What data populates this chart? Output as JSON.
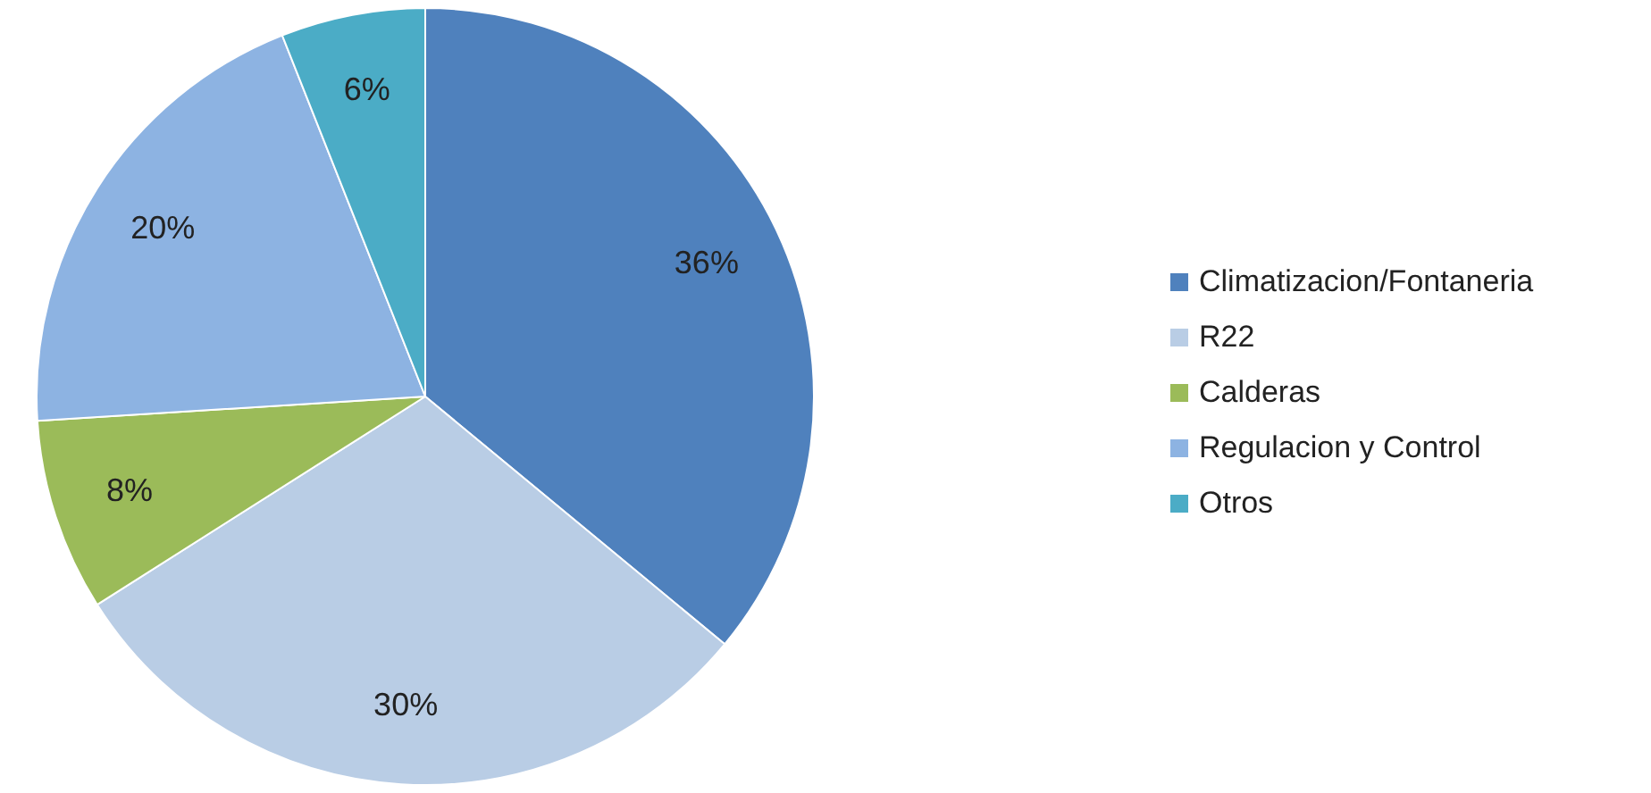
{
  "chart_data": {
    "type": "pie",
    "categories": [
      "Climatizacion/Fontaneria",
      "R22",
      "Calderas",
      "Regulacion y Control",
      "Otros"
    ],
    "values": [
      36,
      30,
      8,
      20,
      6
    ],
    "colors": [
      "#4f81bd",
      "#b9cde5",
      "#9bbb59",
      "#8db3e2",
      "#4bacc6"
    ],
    "value_labels": [
      "36%",
      "30%",
      "8%",
      "20%",
      "6%"
    ],
    "legend": "right"
  }
}
